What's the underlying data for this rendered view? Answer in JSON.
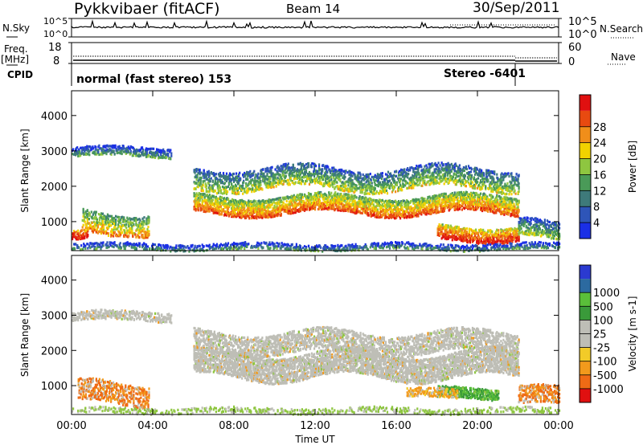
{
  "header": {
    "station": "Pykkvibaer (fitACF)",
    "beam": "Beam 14",
    "date": "30/Sep/2011"
  },
  "left_labels": {
    "nsky": "N.Sky",
    "nsky_ticks": [
      "10^5",
      "10^0"
    ],
    "freq": "Freq.",
    "freq_unit": "[MHz]",
    "freq_ticks": [
      "18",
      "8"
    ],
    "cpid": "CPID"
  },
  "right_labels": {
    "nsearch": "N.Search",
    "nsearch_ticks": [
      "10^5",
      "10^0"
    ],
    "nave": "Nave",
    "nave_ticks": [
      "60",
      "0"
    ]
  },
  "cpid_bar": {
    "program": "normal (fast stereo) 153",
    "stereo": "Stereo -6401"
  },
  "colors": {
    "power": [
      "#1a2fe6",
      "#2e55b8",
      "#3e7a7a",
      "#4a9a58",
      "#8ec640",
      "#f2d200",
      "#f08e1a",
      "#e84a10",
      "#e01010"
    ],
    "velocity": [
      "#e01010",
      "#ef6b15",
      "#f29a1c",
      "#f2cb28",
      "#bebeb6",
      "#bebeb6",
      "#3a9a3a",
      "#5abf3a",
      "#2c6aa0",
      "#2b3ad0"
    ]
  },
  "chart_data": [
    {
      "type": "heatmap",
      "panel": "power",
      "ylabel": "Slant Range [km]",
      "xlabel": "",
      "x_ticks": [
        "00:00",
        "04:00",
        "08:00",
        "12:00",
        "16:00",
        "20:00",
        "00:00"
      ],
      "y_ticks": [
        1000,
        2000,
        3000,
        4000
      ],
      "xlim_hours": [
        0,
        24
      ],
      "ylim_km": [
        180,
        4700
      ],
      "colorbar": {
        "label": "Power [dB]",
        "ticks": [
          4,
          8,
          12,
          16,
          20,
          24,
          28
        ],
        "range": [
          0,
          30
        ]
      },
      "features": [
        {
          "start_h": 0.0,
          "end_h": 4.9,
          "center_km": 3000,
          "width_km": 260,
          "level": 0.18,
          "cov": 0.7
        },
        {
          "start_h": 0.0,
          "end_h": 0.8,
          "center_km": 600,
          "width_km": 260,
          "level": 0.95,
          "cov": 0.85
        },
        {
          "start_h": 0.5,
          "end_h": 3.8,
          "center_km": 1000,
          "width_km": 600,
          "level": 0.55,
          "cov": 0.55
        },
        {
          "start_h": 6.0,
          "end_h": 22.0,
          "center_km": 1500,
          "width_km": 500,
          "level": 0.65,
          "cov": 0.82
        },
        {
          "start_h": 6.0,
          "end_h": 22.0,
          "center_km": 2250,
          "width_km": 600,
          "level": 0.35,
          "cov": 0.55
        },
        {
          "start_h": 18.0,
          "end_h": 22.0,
          "center_km": 700,
          "width_km": 400,
          "level": 0.8,
          "cov": 0.8
        },
        {
          "start_h": 0.0,
          "end_h": 24.0,
          "center_km": 320,
          "width_km": 180,
          "level": 0.15,
          "cov": 0.55
        },
        {
          "start_h": 22.0,
          "end_h": 24.0,
          "center_km": 800,
          "width_km": 500,
          "level": 0.3,
          "cov": 0.6
        }
      ]
    },
    {
      "type": "heatmap",
      "panel": "velocity",
      "ylabel": "Slant Range [km]",
      "xlabel": "Time UT",
      "x_ticks": [
        "00:00",
        "04:00",
        "08:00",
        "12:00",
        "16:00",
        "20:00",
        "00:00"
      ],
      "y_ticks": [
        1000,
        2000,
        3000,
        4000
      ],
      "xlim_hours": [
        0,
        24
      ],
      "ylim_km": [
        180,
        4700
      ],
      "colorbar": {
        "label": "Velocity [m s-1]",
        "ticks": [
          -1000,
          -500,
          -100,
          -25,
          25,
          100,
          500,
          1000
        ]
      },
      "features": [
        {
          "start_h": 0.0,
          "end_h": 4.9,
          "center_km": 3000,
          "width_km": 260,
          "vel": "low",
          "cov": 0.7
        },
        {
          "start_h": 0.3,
          "end_h": 3.8,
          "center_km": 800,
          "width_km": 600,
          "vel": "neg",
          "cov": 0.5
        },
        {
          "start_h": 6.0,
          "end_h": 22.0,
          "center_km": 1600,
          "width_km": 700,
          "vel": "low",
          "cov": 0.85
        },
        {
          "start_h": 6.0,
          "end_h": 22.0,
          "center_km": 2250,
          "width_km": 600,
          "vel": "low",
          "cov": 0.6
        },
        {
          "start_h": 18.0,
          "end_h": 21.0,
          "center_km": 800,
          "width_km": 300,
          "vel": "pos",
          "cov": 0.85
        },
        {
          "start_h": 16.5,
          "end_h": 19.0,
          "center_km": 800,
          "width_km": 250,
          "vel": "negweak",
          "cov": 0.7
        },
        {
          "start_h": 22.0,
          "end_h": 24.0,
          "center_km": 700,
          "width_km": 500,
          "vel": "neg",
          "cov": 0.6
        },
        {
          "start_h": 0.0,
          "end_h": 24.0,
          "center_km": 320,
          "width_km": 160,
          "vel": "poslow",
          "cov": 0.45
        }
      ]
    }
  ]
}
